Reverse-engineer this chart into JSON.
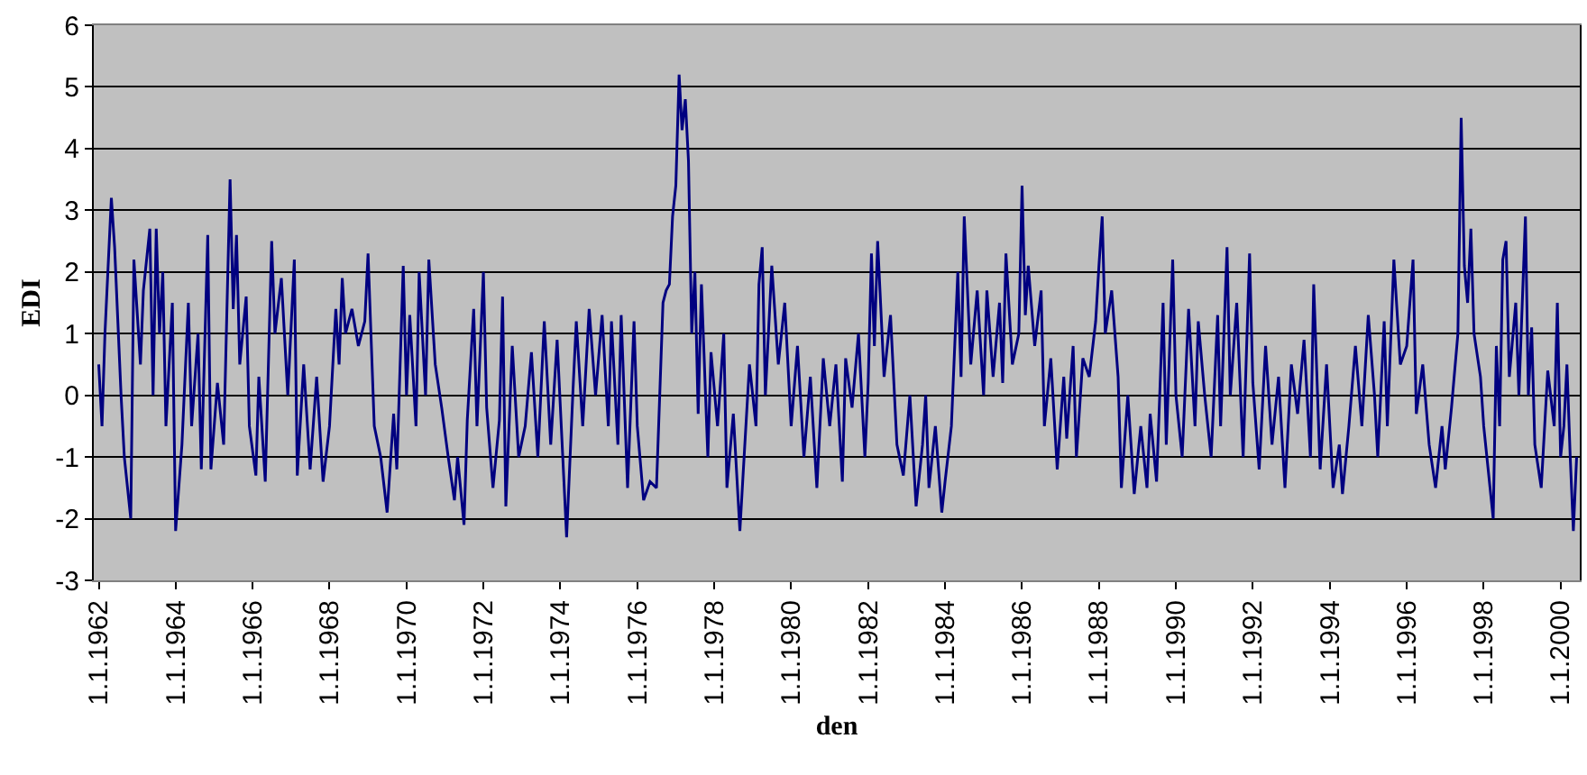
{
  "chart_data": {
    "type": "line",
    "xlabel": "den",
    "ylabel": "EDI",
    "grid": "y",
    "legend": false,
    "marker": "none",
    "line_style": "solid",
    "ylim": [
      -3,
      6
    ],
    "yticks": [
      -3,
      -2,
      -1,
      0,
      1,
      2,
      3,
      4,
      5,
      6
    ],
    "xlim": [
      "1961-11-15",
      "2000-07-01"
    ],
    "xticks": [
      {
        "value": "1962-01-01",
        "label": "1.1.1962"
      },
      {
        "value": "1964-01-01",
        "label": "1.1.1964"
      },
      {
        "value": "1966-01-01",
        "label": "1.1.1966"
      },
      {
        "value": "1968-01-01",
        "label": "1.1.1968"
      },
      {
        "value": "1970-01-01",
        "label": "1.1.1970"
      },
      {
        "value": "1972-01-01",
        "label": "1.1.1972"
      },
      {
        "value": "1974-01-01",
        "label": "1.1.1974"
      },
      {
        "value": "1976-01-01",
        "label": "1.1.1976"
      },
      {
        "value": "1978-01-01",
        "label": "1.1.1978"
      },
      {
        "value": "1980-01-01",
        "label": "1.1.1980"
      },
      {
        "value": "1982-01-01",
        "label": "1.1.1982"
      },
      {
        "value": "1984-01-01",
        "label": "1.1.1984"
      },
      {
        "value": "1986-01-01",
        "label": "1.1.1986"
      },
      {
        "value": "1988-01-01",
        "label": "1.1.1988"
      },
      {
        "value": "1990-01-01",
        "label": "1.1.1990"
      },
      {
        "value": "1992-01-01",
        "label": "1.1.1992"
      },
      {
        "value": "1994-01-01",
        "label": "1.1.1994"
      },
      {
        "value": "1996-01-01",
        "label": "1.1.1996"
      },
      {
        "value": "1998-01-01",
        "label": "1.1.1998"
      },
      {
        "value": "2000-01-01",
        "label": "1.1.2000"
      }
    ],
    "x": [
      "1962-01",
      "1962-02",
      "1962-03",
      "1962-05",
      "1962-06",
      "1962-08",
      "1962-09",
      "1962-11",
      "1962-12",
      "1963-02",
      "1963-03",
      "1963-05",
      "1963-06",
      "1963-07",
      "1963-08",
      "1963-09",
      "1963-10",
      "1963-12",
      "1964-01",
      "1964-03",
      "1964-05",
      "1964-06",
      "1964-08",
      "1964-09",
      "1964-11",
      "1964-12",
      "1965-02",
      "1965-04",
      "1965-06",
      "1965-07",
      "1965-08",
      "1965-09",
      "1965-11",
      "1965-12",
      "1966-02",
      "1966-03",
      "1966-05",
      "1966-07",
      "1966-08",
      "1966-10",
      "1966-12",
      "1967-02",
      "1967-03",
      "1967-05",
      "1967-07",
      "1967-09",
      "1967-11",
      "1968-01",
      "1968-03",
      "1968-04",
      "1968-05",
      "1968-06",
      "1968-08",
      "1968-10",
      "1968-12",
      "1969-01",
      "1969-03",
      "1969-05",
      "1969-07",
      "1969-09",
      "1969-10",
      "1969-12",
      "1970-01",
      "1970-02",
      "1970-04",
      "1970-05",
      "1970-07",
      "1970-08",
      "1970-10",
      "1970-12",
      "1971-02",
      "1971-04",
      "1971-05",
      "1971-07",
      "1971-08",
      "1971-10",
      "1971-11",
      "1972-01",
      "1972-02",
      "1972-04",
      "1972-06",
      "1972-07",
      "1972-08",
      "1972-10",
      "1972-12",
      "1973-02",
      "1973-04",
      "1973-06",
      "1973-08",
      "1973-10",
      "1973-12",
      "1974-02",
      "1974-03",
      "1974-05",
      "1974-06",
      "1974-08",
      "1974-10",
      "1974-12",
      "1975-02",
      "1975-04",
      "1975-05",
      "1975-07",
      "1975-08",
      "1975-10",
      "1975-12",
      "1976-01",
      "1976-03",
      "1976-05",
      "1976-07",
      "1976-09",
      "1976-10",
      "1976-11",
      "1976-12",
      "1977-01",
      "1977-02",
      "1977-03",
      "1977-04",
      "1977-05",
      "1977-06",
      "1977-07",
      "1977-08",
      "1977-09",
      "1977-11",
      "1977-12",
      "1978-02",
      "1978-04",
      "1978-05",
      "1978-07",
      "1978-09",
      "1978-10",
      "1978-12",
      "1979-02",
      "1979-03",
      "1979-04",
      "1979-05",
      "1979-07",
      "1979-09",
      "1979-11",
      "1980-01",
      "1980-03",
      "1980-05",
      "1980-07",
      "1980-09",
      "1980-11",
      "1981-01",
      "1981-03",
      "1981-05",
      "1981-06",
      "1981-08",
      "1981-10",
      "1981-12",
      "1982-01",
      "1982-02",
      "1982-03",
      "1982-04",
      "1982-06",
      "1982-08",
      "1982-10",
      "1982-12",
      "1983-02",
      "1983-04",
      "1983-06",
      "1983-07",
      "1983-08",
      "1983-10",
      "1983-12",
      "1984-01",
      "1984-03",
      "1984-05",
      "1984-06",
      "1984-07",
      "1984-09",
      "1984-11",
      "1985-01",
      "1985-02",
      "1985-04",
      "1985-06",
      "1985-07",
      "1985-08",
      "1985-10",
      "1985-12",
      "1986-01",
      "1986-02",
      "1986-03",
      "1986-05",
      "1986-07",
      "1986-08",
      "1986-10",
      "1986-12",
      "1987-02",
      "1987-03",
      "1987-05",
      "1987-06",
      "1987-08",
      "1987-10",
      "1987-12",
      "1988-01",
      "1988-02",
      "1988-03",
      "1988-05",
      "1988-07",
      "1988-08",
      "1988-10",
      "1988-12",
      "1989-02",
      "1989-04",
      "1989-05",
      "1989-07",
      "1989-09",
      "1989-10",
      "1989-12",
      "1990-01",
      "1990-03",
      "1990-05",
      "1990-07",
      "1990-08",
      "1990-10",
      "1990-12",
      "1991-02",
      "1991-03",
      "1991-05",
      "1991-06",
      "1991-08",
      "1991-10",
      "1991-12",
      "1992-01",
      "1992-03",
      "1992-05",
      "1992-07",
      "1992-09",
      "1992-11",
      "1993-01",
      "1993-03",
      "1993-05",
      "1993-07",
      "1993-08",
      "1993-10",
      "1993-12",
      "1994-02",
      "1994-04",
      "1994-05",
      "1994-07",
      "1994-09",
      "1994-11",
      "1995-01",
      "1995-03",
      "1995-04",
      "1995-06",
      "1995-07",
      "1995-09",
      "1995-11",
      "1996-01",
      "1996-03",
      "1996-04",
      "1996-06",
      "1996-08",
      "1996-10",
      "1996-12",
      "1997-01",
      "1997-03",
      "1997-05",
      "1997-06",
      "1997-07",
      "1997-08",
      "1997-09",
      "1997-10",
      "1997-12",
      "1998-01",
      "1998-04",
      "1998-05",
      "1998-06",
      "1998-07",
      "1998-08",
      "1998-09",
      "1998-11",
      "1998-12",
      "1999-02",
      "1999-03",
      "1999-04",
      "1999-05",
      "1999-07",
      "1999-09",
      "1999-11",
      "1999-12",
      "2000-01",
      "2000-02",
      "2000-03",
      "2000-04",
      "2000-05",
      "2000-06"
    ],
    "series": [
      {
        "color": "#000080",
        "values": [
          0.5,
          -0.5,
          1.0,
          3.2,
          2.4,
          0.0,
          -1.0,
          -2.0,
          2.2,
          0.5,
          1.7,
          2.7,
          0.0,
          2.7,
          1.0,
          2.0,
          -0.5,
          1.5,
          -2.2,
          -0.8,
          1.5,
          -0.5,
          1.0,
          -1.2,
          2.6,
          -1.2,
          0.2,
          -0.8,
          3.5,
          1.4,
          2.6,
          0.5,
          1.6,
          -0.5,
          -1.3,
          0.3,
          -1.4,
          2.5,
          1.0,
          1.9,
          0.0,
          2.2,
          -1.3,
          0.5,
          -1.2,
          0.3,
          -1.4,
          -0.5,
          1.4,
          0.5,
          1.9,
          1.0,
          1.4,
          0.8,
          1.2,
          2.3,
          -0.5,
          -1.0,
          -1.9,
          -0.3,
          -1.2,
          2.1,
          0.0,
          1.3,
          -0.5,
          2.0,
          0.0,
          2.2,
          0.5,
          -0.2,
          -1.0,
          -1.7,
          -1.0,
          -2.1,
          -0.4,
          1.4,
          -0.5,
          2.0,
          -0.2,
          -1.5,
          -0.4,
          1.6,
          -1.8,
          0.8,
          -1.0,
          -0.5,
          0.7,
          -1.0,
          1.2,
          -0.8,
          0.9,
          -1.3,
          -2.3,
          0.1,
          1.2,
          -0.5,
          1.4,
          0.0,
          1.3,
          -0.5,
          1.2,
          -0.8,
          1.3,
          -1.5,
          1.2,
          -0.5,
          -1.7,
          -1.4,
          -1.5,
          1.5,
          1.7,
          1.8,
          2.9,
          3.4,
          5.2,
          4.3,
          4.8,
          3.8,
          1.0,
          2.0,
          -0.3,
          1.8,
          -1.0,
          0.7,
          -0.5,
          1.0,
          -1.5,
          -0.3,
          -2.2,
          -1.3,
          0.5,
          -0.5,
          1.8,
          2.4,
          0.0,
          2.1,
          0.5,
          1.5,
          -0.5,
          0.8,
          -1.0,
          0.3,
          -1.5,
          0.6,
          -0.5,
          0.5,
          -1.4,
          0.6,
          -0.2,
          1.0,
          -1.0,
          0.2,
          2.3,
          0.8,
          2.5,
          0.3,
          1.3,
          -0.8,
          -1.3,
          0.0,
          -1.8,
          -0.8,
          0.0,
          -1.5,
          -0.5,
          -1.9,
          -1.4,
          -0.5,
          2.0,
          0.3,
          2.9,
          0.5,
          1.7,
          0.0,
          1.7,
          0.3,
          1.5,
          0.2,
          2.3,
          0.5,
          1.0,
          3.4,
          1.3,
          2.1,
          0.8,
          1.7,
          -0.5,
          0.6,
          -1.2,
          0.3,
          -0.7,
          0.8,
          -1.0,
          0.6,
          0.3,
          1.2,
          2.1,
          2.9,
          1.0,
          1.7,
          0.3,
          -1.5,
          0.0,
          -1.6,
          -0.5,
          -1.5,
          -0.3,
          -1.4,
          1.5,
          -0.8,
          2.2,
          0.0,
          -1.0,
          1.4,
          -0.5,
          1.2,
          0.0,
          -1.0,
          1.3,
          -0.5,
          2.4,
          0.0,
          1.5,
          -1.0,
          2.3,
          0.2,
          -1.2,
          0.8,
          -0.8,
          0.3,
          -1.5,
          0.5,
          -0.3,
          0.9,
          -1.0,
          1.8,
          -1.2,
          0.5,
          -1.5,
          -0.8,
          -1.6,
          -0.5,
          0.8,
          -0.5,
          1.3,
          0.0,
          -1.0,
          1.2,
          -0.5,
          2.2,
          0.5,
          0.8,
          2.2,
          -0.3,
          0.5,
          -0.8,
          -1.5,
          -0.5,
          -1.2,
          -0.2,
          1.0,
          4.5,
          2.1,
          1.5,
          2.7,
          1.0,
          0.3,
          -0.5,
          -2.0,
          0.8,
          -0.5,
          2.2,
          2.5,
          0.3,
          1.5,
          0.0,
          2.9,
          0.0,
          1.1,
          -0.8,
          -1.5,
          0.4,
          -0.5,
          1.5,
          -1.0,
          -0.5,
          0.5,
          -1.0,
          -2.2,
          -1.0
        ]
      }
    ]
  }
}
